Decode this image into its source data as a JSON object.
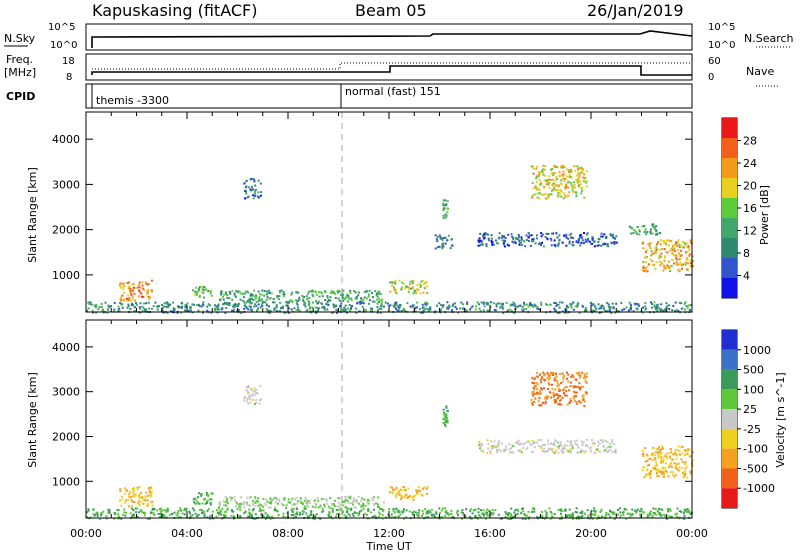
{
  "header": {
    "station": "Kapuskasing (fitACF)",
    "beam": "Beam 05",
    "date": "26/Jan/2019"
  },
  "noise_panel": {
    "left_label": "N.Sky",
    "right_label": "N.Search",
    "left_ticks": [
      "10^5",
      "10^0"
    ],
    "right_ticks": [
      "10^5",
      "10^0"
    ]
  },
  "freq_panel": {
    "left_label_1": "Freq.",
    "left_label_2": "[MHz]",
    "right_label": "Nave",
    "left_ticks": [
      "18",
      "8"
    ],
    "right_ticks": [
      "60",
      "0"
    ]
  },
  "cpid_panel": {
    "label": "CPID",
    "modes": [
      "themis -3300",
      "normal (fast) 151"
    ]
  },
  "x_axis": {
    "title": "Time UT",
    "ticks": [
      "00:00",
      "04:00",
      "08:00",
      "12:00",
      "16:00",
      "20:00",
      "00:00"
    ],
    "range_hours": [
      0,
      24
    ]
  },
  "y_axis": {
    "title": "Slant Range [km]",
    "ticks": [
      1000,
      2000,
      3000,
      4000
    ],
    "range_km": [
      180,
      4600
    ]
  },
  "chart_data": [
    {
      "type": "heatmap",
      "title": "Power",
      "xlabel": "Time UT",
      "ylabel": "Slant Range [km]",
      "xlim_hours": [
        0,
        24
      ],
      "ylim_km": [
        180,
        4600
      ],
      "colorbar": {
        "label": "Power [dB]",
        "ticks": [
          4,
          8,
          12,
          16,
          20,
          24,
          28
        ],
        "range": [
          0,
          32
        ],
        "colors": [
          "#1010e8",
          "#3355cc",
          "#2e8a6e",
          "#3fa86a",
          "#5dcc3a",
          "#e8d020",
          "#f59a18",
          "#f06018",
          "#e81818"
        ]
      },
      "regions": [
        {
          "t": [
            1.3,
            2.6
          ],
          "r": [
            450,
            900
          ],
          "level": 24
        },
        {
          "t": [
            4.2,
            5.0
          ],
          "r": [
            500,
            760
          ],
          "level": 14
        },
        {
          "t": [
            5.2,
            11.8
          ],
          "r": [
            420,
            680
          ],
          "level": 12
        },
        {
          "t": [
            12.0,
            13.5
          ],
          "r": [
            600,
            900
          ],
          "level": 18
        },
        {
          "t": [
            13.8,
            14.5
          ],
          "r": [
            1600,
            1900
          ],
          "level": 8
        },
        {
          "t": [
            14.1,
            14.3
          ],
          "r": [
            2250,
            2700
          ],
          "level": 14
        },
        {
          "t": [
            15.5,
            21.0
          ],
          "r": [
            1650,
            1950
          ],
          "level": 6
        },
        {
          "t": [
            17.6,
            19.8
          ],
          "r": [
            2700,
            3450
          ],
          "level": 20
        },
        {
          "t": [
            21.5,
            22.8
          ],
          "r": [
            1900,
            2150
          ],
          "level": 12
        },
        {
          "t": [
            22.0,
            24.0
          ],
          "r": [
            1100,
            1800
          ],
          "level": 22
        },
        {
          "t": [
            6.2,
            6.9
          ],
          "r": [
            2700,
            3150
          ],
          "level": 8
        },
        {
          "t": [
            0.0,
            24.0
          ],
          "r": [
            180,
            420
          ],
          "level": 10
        }
      ]
    },
    {
      "type": "heatmap",
      "title": "Velocity",
      "xlabel": "Time UT",
      "ylabel": "Slant Range [km]",
      "xlim_hours": [
        0,
        24
      ],
      "ylim_km": [
        180,
        4600
      ],
      "colorbar": {
        "label": "Velocity [m s^-1]",
        "ticks": [
          "1000",
          "500",
          "100",
          "25",
          "-25",
          "-100",
          "-500",
          "-1000"
        ],
        "colors": [
          "#2030d0",
          "#3a70c8",
          "#3a9a5a",
          "#5cc83a",
          "#c8c8c8",
          "#f0d020",
          "#f5a020",
          "#f06018",
          "#e81818"
        ]
      },
      "regions": [
        {
          "t": [
            1.3,
            2.6
          ],
          "r": [
            450,
            900
          ],
          "level": -100
        },
        {
          "t": [
            4.2,
            5.0
          ],
          "r": [
            500,
            760
          ],
          "level": 100
        },
        {
          "t": [
            5.2,
            11.8
          ],
          "r": [
            420,
            680
          ],
          "level": 25
        },
        {
          "t": [
            12.0,
            13.5
          ],
          "r": [
            600,
            900
          ],
          "level": -100
        },
        {
          "t": [
            14.1,
            14.3
          ],
          "r": [
            2250,
            2700
          ],
          "level": 100
        },
        {
          "t": [
            15.5,
            21.0
          ],
          "r": [
            1650,
            1950
          ],
          "level": 0
        },
        {
          "t": [
            17.6,
            19.8
          ],
          "r": [
            2700,
            3450
          ],
          "level": -500
        },
        {
          "t": [
            22.0,
            24.0
          ],
          "r": [
            1100,
            1800
          ],
          "level": -100
        },
        {
          "t": [
            6.2,
            6.9
          ],
          "r": [
            2700,
            3150
          ],
          "level": 0
        },
        {
          "t": [
            0.0,
            24.0
          ],
          "r": [
            180,
            420
          ],
          "level": 100
        }
      ]
    }
  ]
}
